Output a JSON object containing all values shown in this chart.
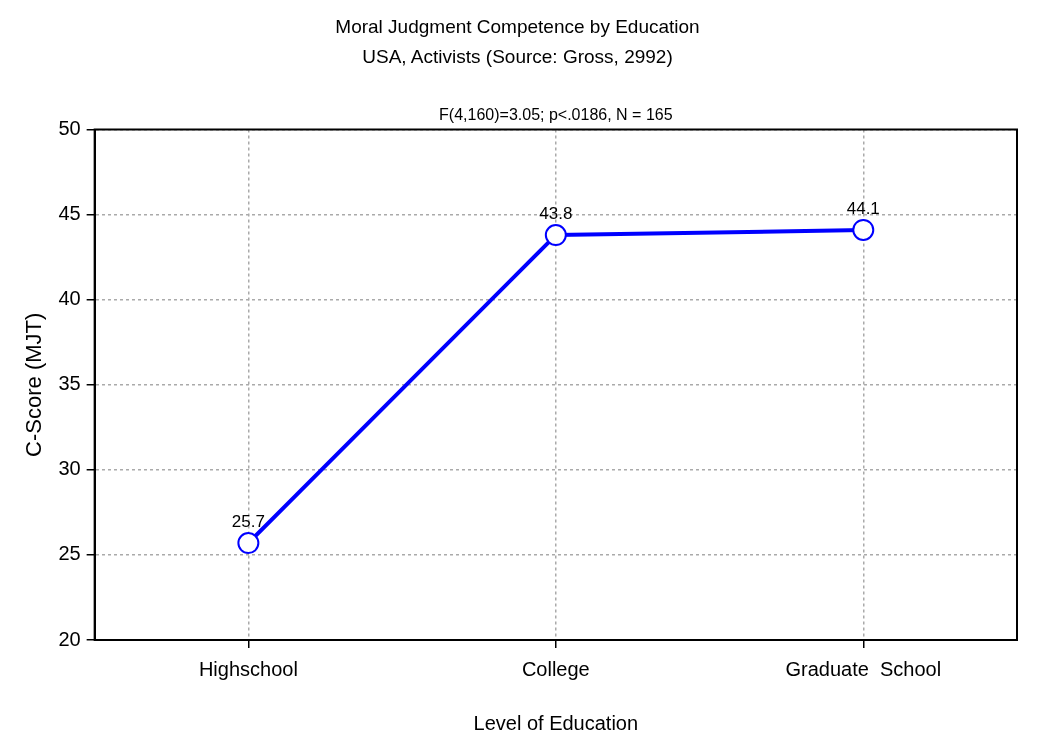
{
  "chart_data": {
    "type": "line",
    "title": "Moral Judgment Competence by Education",
    "subtitle": "USA, Activists (Source: Gross, 2992)",
    "annotations": [
      "F(4,160)=3.05; p<.0186, N = 165"
    ],
    "xlabel": "Level of Education",
    "ylabel": "C-Score (MJT)",
    "categories": [
      "Highschool",
      "College",
      "Graduate  School"
    ],
    "series": [
      {
        "color": "#0000ff",
        "values": [
          25.7,
          43.8,
          44.1
        ]
      }
    ],
    "ylim": [
      20,
      50
    ],
    "yticks": [
      20,
      25,
      30,
      35,
      40,
      45,
      50
    ],
    "grid": true,
    "marker": "circle",
    "line_style": "solid",
    "data_labels": true,
    "legend": false
  }
}
